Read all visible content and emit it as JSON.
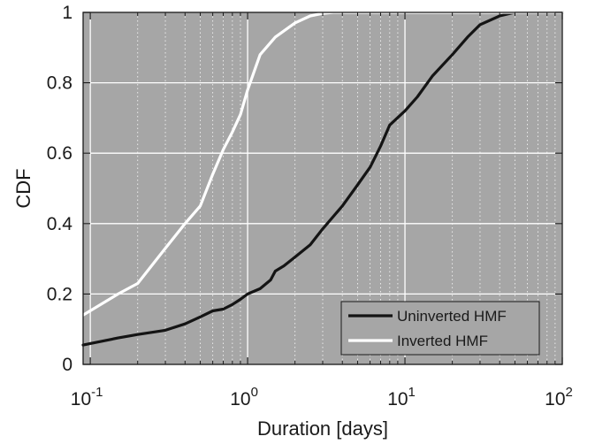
{
  "chart_data": {
    "type": "line",
    "title": "",
    "xlabel": "Duration [days]",
    "ylabel": "CDF",
    "xscale": "log",
    "xlim": [
      0.09,
      100
    ],
    "ylim": [
      0,
      1
    ],
    "grid": true,
    "background_color": "#a6a6a6",
    "grid_color": "#ffffff",
    "legend_position": "bottom-right",
    "x_ticks": [
      {
        "value": 0.1,
        "base": "10",
        "exp": "-1"
      },
      {
        "value": 1,
        "base": "10",
        "exp": "0"
      },
      {
        "value": 10,
        "base": "10",
        "exp": "1"
      },
      {
        "value": 100,
        "base": "10",
        "exp": "2"
      }
    ],
    "y_ticks": [
      {
        "value": 0,
        "label": "0"
      },
      {
        "value": 0.2,
        "label": "0.2"
      },
      {
        "value": 0.4,
        "label": "0.4"
      },
      {
        "value": 0.6,
        "label": "0.6"
      },
      {
        "value": 0.8,
        "label": "0.8"
      },
      {
        "value": 1,
        "label": "1"
      }
    ],
    "series": [
      {
        "name": "Uninverted HMF",
        "color": "#141414",
        "x": [
          0.09,
          0.15,
          0.2,
          0.3,
          0.4,
          0.5,
          0.6,
          0.7,
          0.8,
          0.9,
          1.0,
          1.2,
          1.4,
          1.5,
          1.7,
          2.0,
          2.5,
          3.0,
          4.0,
          5.0,
          6.0,
          7.0,
          8.0,
          10.0,
          12.0,
          15.0,
          20.0,
          25.0,
          30.0,
          40.0,
          50.0,
          100.0
        ],
        "y": [
          0.055,
          0.075,
          0.085,
          0.097,
          0.115,
          0.135,
          0.152,
          0.157,
          0.17,
          0.185,
          0.2,
          0.215,
          0.24,
          0.265,
          0.28,
          0.305,
          0.34,
          0.385,
          0.45,
          0.51,
          0.56,
          0.62,
          0.68,
          0.72,
          0.76,
          0.82,
          0.88,
          0.93,
          0.965,
          0.99,
          1.0,
          1.0
        ]
      },
      {
        "name": "Inverted HMF",
        "color": "#ffffff",
        "x": [
          0.09,
          0.15,
          0.2,
          0.3,
          0.4,
          0.5,
          0.6,
          0.7,
          0.8,
          0.9,
          1.0,
          1.2,
          1.5,
          2.0,
          2.5,
          3.0,
          3.5,
          100.0
        ],
        "y": [
          0.14,
          0.2,
          0.23,
          0.33,
          0.4,
          0.45,
          0.54,
          0.61,
          0.66,
          0.71,
          0.78,
          0.88,
          0.93,
          0.97,
          0.99,
          0.997,
          1.0,
          1.0
        ]
      }
    ]
  }
}
